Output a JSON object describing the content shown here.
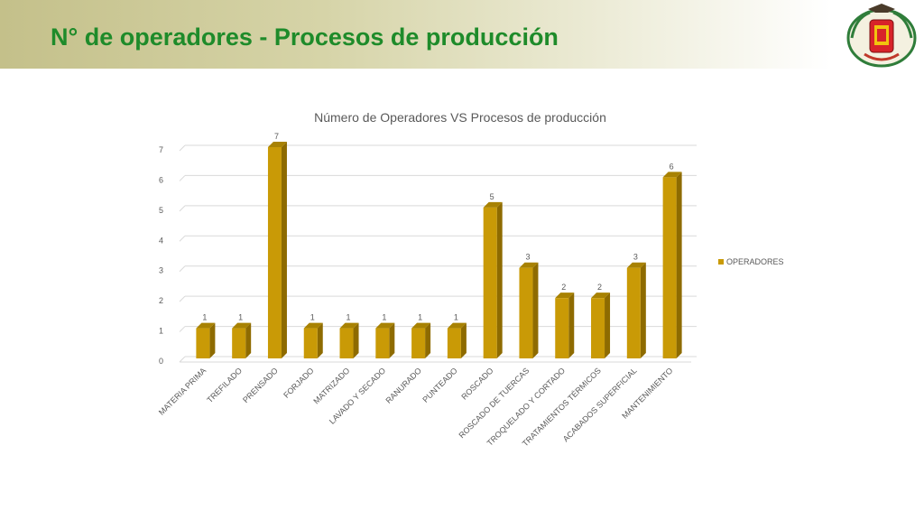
{
  "header": {
    "title": "N° de operadores - Procesos de producción"
  },
  "logo": {
    "icon": "coat-of-arms-logo"
  },
  "colors": {
    "bar_front": "#c99a06",
    "bar_side": "#8e6b00",
    "bar_top": "#a88203",
    "title_green": "#1e8b2a"
  },
  "chart_data": {
    "type": "bar",
    "title": "Número de Operadores VS Procesos de producción",
    "categories": [
      "MATERIA PRIMA",
      "TREFILADO",
      "PRENSADO",
      "FORJADO",
      "MATRIZADO",
      "LAVADO Y SECADO",
      "RANURADO",
      "PUNTEADO",
      "ROSCADO",
      "ROSCADO DE TUERCAS",
      "TROQUELADO Y CORTADO",
      "TRATAMIENTOS TÉRMICOS",
      "ACABADOS SUPERFICIAL",
      "MANTENIMIENTO"
    ],
    "series": [
      {
        "name": "OPERADORES",
        "values": [
          1,
          1,
          7,
          1,
          1,
          1,
          1,
          1,
          5,
          3,
          2,
          2,
          3,
          6
        ]
      }
    ],
    "ylim": [
      0,
      7
    ],
    "yticks": [
      "0",
      "1",
      "2",
      "3",
      "4",
      "5",
      "6",
      "7"
    ],
    "grid": true,
    "legend": "right",
    "xlabel": "",
    "ylabel": ""
  }
}
